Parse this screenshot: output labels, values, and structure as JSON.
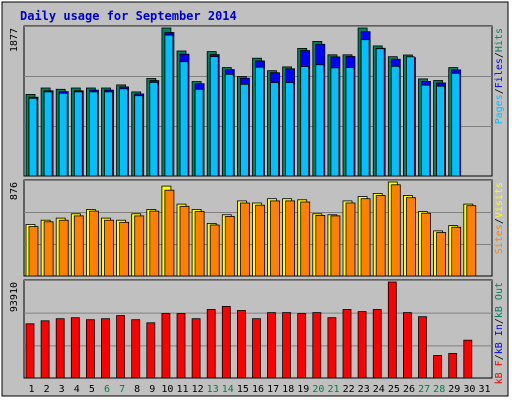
{
  "title": "Daily usage for September 2014",
  "colors": {
    "background": "#ffffff",
    "frame": "#c0c0c0",
    "panel": "#c0c0c0",
    "title": "#0000d0",
    "label_dark": "#000000",
    "weekend_day": "#008040",
    "grid": "#808080"
  },
  "chart_data": [
    {
      "type": "bar",
      "panel": "top",
      "max_label": "1877",
      "ylim": [
        0,
        1877
      ],
      "grid": true,
      "categories": [
        "1",
        "2",
        "3",
        "4",
        "5",
        "6",
        "7",
        "8",
        "9",
        "10",
        "11",
        "12",
        "13",
        "14",
        "15",
        "16",
        "17",
        "18",
        "19",
        "20",
        "21",
        "22",
        "23",
        "24",
        "25",
        "26",
        "27",
        "28",
        "29",
        "30",
        "31"
      ],
      "series": [
        {
          "name": "Hits",
          "color": "#00805c",
          "values": [
            1035,
            1116,
            1100,
            1116,
            1116,
            1116,
            1156,
            1067,
            1236,
            1877,
            1585,
            1197,
            1578,
            1375,
            1261,
            1494,
            1336,
            1384,
            1618,
            1707,
            1537,
            1537,
            1877,
            1650,
            1513,
            1535,
            1232,
            1211,
            1375,
            null,
            null
          ]
        },
        {
          "name": "Files",
          "color": "#0000ff",
          "values": [
            1000,
            1080,
            1070,
            1080,
            1090,
            1090,
            1130,
            1040,
            1210,
            1820,
            1545,
            1170,
            1540,
            1350,
            1240,
            1460,
            1310,
            1360,
            1590,
            1670,
            1510,
            1515,
            1830,
            1620,
            1480,
            1500,
            1200,
            1180,
            1345,
            null,
            null
          ]
        },
        {
          "name": "Pages",
          "color": "#00c0ff",
          "values": [
            985,
            1066,
            1050,
            1066,
            1066,
            1066,
            1106,
            1018,
            1187,
            1787,
            1450,
            1100,
            1514,
            1290,
            1163,
            1380,
            1185,
            1184,
            1388,
            1412,
            1371,
            1376,
            1728,
            1614,
            1391,
            1512,
            1153,
            1139,
            1302,
            null,
            null
          ]
        }
      ]
    },
    {
      "type": "bar",
      "panel": "middle",
      "max_label": "876",
      "ylim": [
        0,
        876
      ],
      "grid": true,
      "categories": [
        "1",
        "2",
        "3",
        "4",
        "5",
        "6",
        "7",
        "8",
        "9",
        "10",
        "11",
        "12",
        "13",
        "14",
        "15",
        "16",
        "17",
        "18",
        "19",
        "20",
        "21",
        "22",
        "23",
        "24",
        "25",
        "26",
        "27",
        "28",
        "29",
        "30",
        "31"
      ],
      "series": [
        {
          "name": "Visits",
          "color": "#ffff00",
          "values": [
            480,
            520,
            540,
            580,
            620,
            540,
            520,
            580,
            620,
            838,
            670,
            620,
            490,
            570,
            700,
            680,
            720,
            720,
            710,
            580,
            570,
            700,
            740,
            770,
            876,
            750,
            600,
            420,
            470,
            670,
            null
          ]
        },
        {
          "name": "Sites",
          "color": "#ff8000",
          "values": [
            460,
            505,
            520,
            560,
            605,
            520,
            500,
            560,
            605,
            800,
            650,
            600,
            475,
            555,
            680,
            660,
            700,
            700,
            690,
            565,
            560,
            680,
            720,
            750,
            850,
            730,
            585,
            405,
            455,
            655,
            null
          ]
        }
      ]
    },
    {
      "type": "bar",
      "panel": "bottom",
      "max_label": "93910",
      "ylim": [
        0,
        93910
      ],
      "grid": true,
      "categories": [
        "1",
        "2",
        "3",
        "4",
        "5",
        "6",
        "7",
        "8",
        "9",
        "10",
        "11",
        "12",
        "13",
        "14",
        "15",
        "16",
        "17",
        "18",
        "19",
        "20",
        "21",
        "22",
        "23",
        "24",
        "25",
        "26",
        "27",
        "28",
        "29",
        "30",
        "31"
      ],
      "series": [
        {
          "name": "KBytes F",
          "color": "#ff0000",
          "values": [
            53000,
            56000,
            58000,
            59000,
            57000,
            58000,
            61000,
            57000,
            54000,
            63000,
            63000,
            58000,
            67000,
            70000,
            66000,
            58000,
            64000,
            64000,
            63000,
            64000,
            59000,
            67000,
            65000,
            67000,
            93910,
            64000,
            60000,
            22000,
            24000,
            37000,
            null
          ]
        }
      ]
    }
  ],
  "legends": {
    "top": [
      {
        "text": "Pages",
        "color": "#00c0ff"
      },
      {
        "text": "/",
        "color": "#000000"
      },
      {
        "text": "Files",
        "color": "#0000ff"
      },
      {
        "text": "/",
        "color": "#000000"
      },
      {
        "text": "Hits",
        "color": "#00805c"
      }
    ],
    "middle": [
      {
        "text": "Sites",
        "color": "#ff8000"
      },
      {
        "text": "/",
        "color": "#000000"
      },
      {
        "text": "Visits",
        "color": "#ffff00"
      }
    ],
    "bottom": [
      {
        "text": "kB F",
        "color": "#ff0000"
      },
      {
        "text": "/",
        "color": "#000000"
      },
      {
        "text": "kB In",
        "color": "#0000ff"
      },
      {
        "text": "/",
        "color": "#000000"
      },
      {
        "text": "kB Out",
        "color": "#00805c"
      }
    ]
  },
  "weekend_days": [
    "6",
    "7",
    "13",
    "14",
    "20",
    "21",
    "27",
    "28"
  ]
}
